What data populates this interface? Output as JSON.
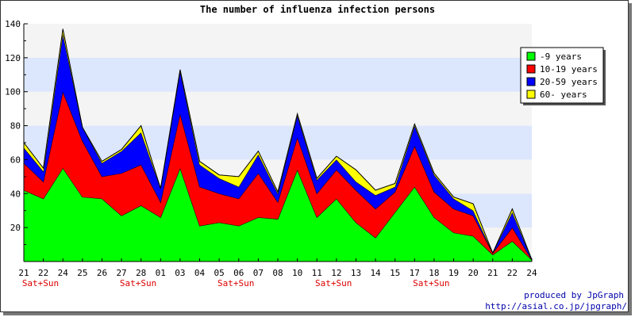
{
  "chart_data": {
    "type": "area",
    "stacked": true,
    "title": "The number of influenza infection persons",
    "xlabel": "",
    "ylabel": "",
    "ylim": [
      0,
      140
    ],
    "yticks": [
      20,
      40,
      60,
      80,
      100,
      120,
      140
    ],
    "grid": true,
    "legend_position": "top-right",
    "categories": [
      "21",
      "22",
      "24",
      "25",
      "26",
      "27",
      "28",
      "01",
      "03",
      "04",
      "05",
      "06",
      "07",
      "08",
      "10",
      "11",
      "12",
      "13",
      "14",
      "15",
      "17",
      "18",
      "19",
      "20",
      "21",
      "22",
      "24"
    ],
    "weekend_labels": [
      "Sat+Sun",
      "",
      "",
      "",
      "",
      "Sat+Sun",
      "",
      "",
      "",
      "",
      "Sat+Sun",
      "",
      "",
      "",
      "",
      "Sat+Sun",
      "",
      "",
      "",
      "",
      "Sat+Sun",
      "",
      "",
      "",
      "",
      "",
      ""
    ],
    "series": [
      {
        "name": "-9 years",
        "color": "#00ff00",
        "values": [
          42,
          37,
          55,
          38,
          37,
          27,
          33,
          26,
          55,
          21,
          23,
          21,
          26,
          25,
          54,
          26,
          37,
          23,
          14,
          29,
          44,
          26,
          17,
          15,
          4,
          12,
          1
        ]
      },
      {
        "name": "10-19 years",
        "color": "#ff0000",
        "values": [
          16,
          10,
          45,
          33,
          13,
          25,
          24,
          9,
          32,
          23,
          17,
          16,
          26,
          10,
          19,
          14,
          17,
          19,
          17,
          12,
          24,
          15,
          14,
          12,
          1,
          8,
          0
        ]
      },
      {
        "name": "20-59 years",
        "color": "#0000ff",
        "values": [
          9,
          6,
          34,
          8,
          8,
          13,
          19,
          8,
          25,
          13,
          9,
          7,
          11,
          5,
          13,
          8,
          6,
          5,
          8,
          3,
          12,
          10,
          6,
          3,
          0,
          9,
          0
        ]
      },
      {
        "name": "60- years",
        "color": "#ffff00",
        "values": [
          3,
          2,
          3,
          0,
          1,
          1,
          4,
          0,
          1,
          2,
          2,
          6,
          2,
          1,
          1,
          1,
          2,
          7,
          3,
          2,
          1,
          1,
          1,
          4,
          0,
          2,
          0
        ]
      }
    ],
    "band_colors": [
      "#f4f4f4",
      "#dce6fc"
    ]
  },
  "credit": {
    "line1": "produced by JpGraph",
    "line2": "http://asial.co.jp/jpgraph/"
  }
}
